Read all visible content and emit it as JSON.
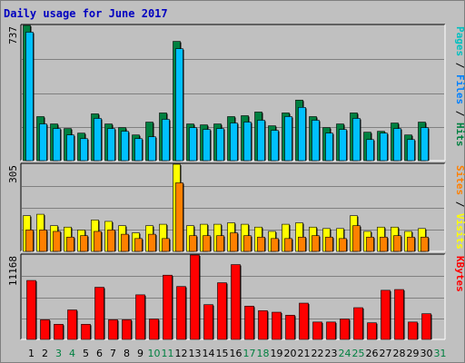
{
  "chart_data": {
    "type": "bar",
    "title": "Daily usage for June 2017",
    "categories": [
      "1",
      "2",
      "3",
      "4",
      "5",
      "6",
      "7",
      "8",
      "9",
      "10",
      "11",
      "12",
      "13",
      "14",
      "15",
      "16",
      "17",
      "18",
      "19",
      "20",
      "21",
      "22",
      "23",
      "24",
      "25",
      "26",
      "27",
      "28",
      "29",
      "30",
      "31"
    ],
    "weekend_days": [
      "3",
      "4",
      "10",
      "11",
      "17",
      "18",
      "24",
      "25",
      "31"
    ],
    "colors": {
      "hits": "#008040",
      "files": "#00c0ff",
      "pages": "#00c0ff",
      "visits": "#ffff00",
      "sites": "#ff8000",
      "kbytes": "#ff0000",
      "title": "#0000c0",
      "weekday_label": "#000000",
      "weekend_label": "#008040",
      "panel_bg": "#c0c0c0"
    },
    "panels": [
      {
        "id": "hits-files",
        "ymax_label": "737",
        "ylim": [
          0,
          737
        ],
        "legend": [
          {
            "text": "Pages",
            "color": "#00c0c0"
          },
          {
            "text": " / ",
            "color": "#000000"
          },
          {
            "text": "Files",
            "color": "#0080ff"
          },
          {
            "text": " / ",
            "color": "#000000"
          },
          {
            "text": "Hits",
            "color": "#008040"
          }
        ],
        "series": [
          {
            "name": "Hits",
            "color": "#008040",
            "values": [
              737,
              240,
              200,
              175,
              150,
              255,
              200,
              180,
              140,
              210,
              260,
              650,
              200,
              195,
              200,
              240,
              245,
              265,
              190,
              260,
              330,
              240,
              180,
              200,
              260,
              155,
              160,
              205,
              140,
              210,
              0
            ]
          },
          {
            "name": "Files",
            "color": "#00c0ff",
            "values": [
              700,
              200,
              175,
              140,
              120,
              230,
              175,
              160,
              120,
              130,
              225,
              610,
              180,
              170,
              175,
              205,
              210,
              220,
              165,
              240,
              290,
              220,
              150,
              170,
              230,
              115,
              150,
              175,
              115,
              180,
              0
            ]
          },
          {
            "name": "Pages",
            "color": "#00c0ff",
            "values": [
              0,
              0,
              0,
              0,
              0,
              0,
              0,
              0,
              0,
              0,
              0,
              0,
              0,
              0,
              0,
              0,
              0,
              0,
              0,
              0,
              0,
              0,
              0,
              0,
              0,
              0,
              0,
              0,
              0,
              0,
              0
            ]
          }
        ]
      },
      {
        "id": "visits-sites",
        "ymax_label": "305",
        "ylim": [
          0,
          305
        ],
        "legend": [
          {
            "text": "Sites",
            "color": "#ff8000"
          },
          {
            "text": " / ",
            "color": "#000000"
          },
          {
            "text": "Visits",
            "color": "#ffff00"
          }
        ],
        "series": [
          {
            "name": "Visits",
            "color": "#ffff00",
            "values": [
              125,
              130,
              90,
              85,
              75,
              110,
              105,
              90,
              65,
              90,
              95,
              305,
              90,
              95,
              95,
              100,
              95,
              85,
              70,
              95,
              100,
              85,
              80,
              80,
              125,
              70,
              85,
              85,
              70,
              80,
              0
            ]
          },
          {
            "name": "Sites",
            "color": "#ff8000",
            "values": [
              75,
              75,
              70,
              50,
              55,
              70,
              75,
              60,
              45,
              60,
              45,
              240,
              55,
              55,
              55,
              65,
              55,
              50,
              45,
              45,
              50,
              55,
              50,
              45,
              90,
              50,
              50,
              55,
              50,
              50,
              0
            ]
          }
        ]
      },
      {
        "id": "kbytes",
        "ymax_label": "11168",
        "ylim": [
          0,
          11168
        ],
        "legend": [
          {
            "text": "KBytes",
            "color": "#ff0000"
          }
        ],
        "series": [
          {
            "name": "KBytes",
            "color": "#ff0000",
            "values": [
              7800,
              2600,
              2000,
              3900,
              2000,
              6900,
              2600,
              2600,
              5900,
              2700,
              8500,
              7000,
              11168,
              4600,
              7500,
              9900,
              4400,
              3800,
              3600,
              3200,
              4800,
              2300,
              2300,
              2700,
              4200,
              2200,
              6500,
              6600,
              2300,
              3400,
              0
            ]
          }
        ]
      }
    ]
  }
}
